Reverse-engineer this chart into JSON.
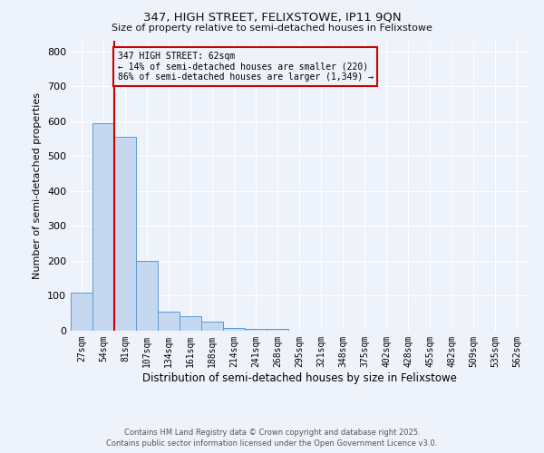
{
  "title1": "347, HIGH STREET, FELIXSTOWE, IP11 9QN",
  "title2": "Size of property relative to semi-detached houses in Felixstowe",
  "xlabel": "Distribution of semi-detached houses by size in Felixstowe",
  "ylabel": "Number of semi-detached properties",
  "categories": [
    "27sqm",
    "54sqm",
    "81sqm",
    "107sqm",
    "134sqm",
    "161sqm",
    "188sqm",
    "214sqm",
    "241sqm",
    "268sqm",
    "295sqm",
    "321sqm",
    "348sqm",
    "375sqm",
    "402sqm",
    "428sqm",
    "455sqm",
    "482sqm",
    "509sqm",
    "535sqm",
    "562sqm"
  ],
  "values": [
    108,
    595,
    555,
    200,
    55,
    42,
    25,
    8,
    5,
    4,
    0,
    0,
    0,
    0,
    0,
    0,
    0,
    0,
    0,
    0,
    0
  ],
  "bar_color": "#c5d8f0",
  "bar_edge_color": "#5b9bd5",
  "vline_x": 1.5,
  "vline_color": "#cc0000",
  "annotation_text": "347 HIGH STREET: 62sqm\n← 14% of semi-detached houses are smaller (220)\n86% of semi-detached houses are larger (1,349) →",
  "annotation_box_color": "#cc0000",
  "annotation_text_color": "#000000",
  "ylim": [
    0,
    830
  ],
  "yticks": [
    0,
    100,
    200,
    300,
    400,
    500,
    600,
    700,
    800
  ],
  "background_color": "#eef2fa",
  "grid_color": "#ffffff",
  "footer_line1": "Contains HM Land Registry data © Crown copyright and database right 2025.",
  "footer_line2": "Contains public sector information licensed under the Open Government Licence v3.0."
}
